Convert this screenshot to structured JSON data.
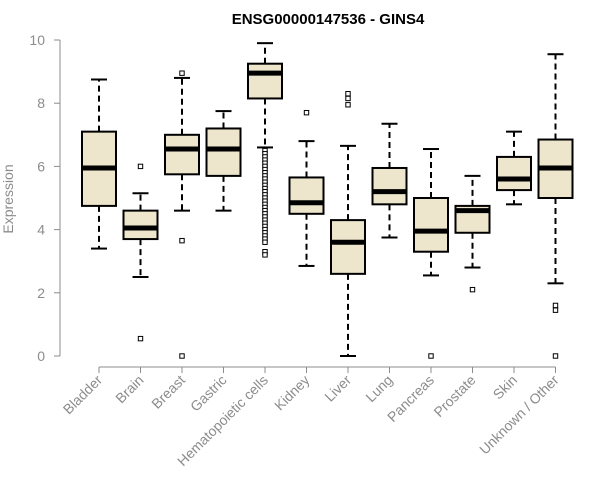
{
  "chart_data": {
    "type": "box",
    "title": "ENSG00000147536 - GINS4",
    "ylabel": "Expression",
    "xlabel": "",
    "ylim": [
      0,
      10
    ],
    "yticks": [
      0,
      2,
      4,
      6,
      8,
      10
    ],
    "colors": {
      "box_fill": "#ede6cc",
      "stroke": "#000000",
      "axis": "#8c8c8c"
    },
    "categories": [
      "Bladder",
      "Brain",
      "Breast",
      "Gastric",
      "Hematopoietic cells",
      "Kidney",
      "Liver",
      "Lung",
      "Pancreas",
      "Prostate",
      "Skin",
      "Unknown / Other"
    ],
    "boxes": [
      {
        "category": "Bladder",
        "whisker_low": 3.4,
        "q1": 4.75,
        "median": 5.95,
        "q3": 7.1,
        "whisker_high": 8.75,
        "outliers": []
      },
      {
        "category": "Brain",
        "whisker_low": 2.5,
        "q1": 3.7,
        "median": 4.05,
        "q3": 4.6,
        "whisker_high": 5.15,
        "outliers": [
          6.0,
          0.55
        ]
      },
      {
        "category": "Breast",
        "whisker_low": 4.6,
        "q1": 5.75,
        "median": 6.55,
        "q3": 7.0,
        "whisker_high": 8.8,
        "outliers": [
          8.95,
          3.65,
          0.0
        ]
      },
      {
        "category": "Gastric",
        "whisker_low": 4.6,
        "q1": 5.7,
        "median": 6.55,
        "q3": 7.2,
        "whisker_high": 7.75,
        "outliers": []
      },
      {
        "category": "Hematopoietic cells",
        "whisker_low": 6.6,
        "q1": 8.15,
        "median": 8.95,
        "q3": 9.25,
        "whisker_high": 9.9,
        "outliers": [
          6.5,
          6.4,
          6.3,
          6.2,
          6.1,
          6.0,
          5.9,
          5.8,
          5.7,
          5.6,
          5.5,
          5.4,
          5.3,
          5.2,
          5.1,
          5.0,
          4.9,
          4.8,
          4.7,
          4.6,
          4.5,
          4.4,
          4.3,
          4.2,
          4.1,
          4.0,
          3.9,
          3.8,
          3.7,
          3.6,
          3.3,
          3.2
        ]
      },
      {
        "category": "Kidney",
        "whisker_low": 2.85,
        "q1": 4.5,
        "median": 4.85,
        "q3": 5.65,
        "whisker_high": 6.8,
        "outliers": [
          7.7
        ]
      },
      {
        "category": "Liver",
        "whisker_low": 0.0,
        "q1": 2.6,
        "median": 3.6,
        "q3": 4.3,
        "whisker_high": 6.65,
        "outliers": [
          8.3,
          8.15,
          7.95
        ]
      },
      {
        "category": "Lung",
        "whisker_low": 3.75,
        "q1": 4.8,
        "median": 5.2,
        "q3": 5.95,
        "whisker_high": 7.35,
        "outliers": []
      },
      {
        "category": "Pancreas",
        "whisker_low": 2.55,
        "q1": 3.3,
        "median": 3.95,
        "q3": 5.0,
        "whisker_high": 6.55,
        "outliers": [
          0.0
        ]
      },
      {
        "category": "Prostate",
        "whisker_low": 2.8,
        "q1": 3.9,
        "median": 4.6,
        "q3": 4.75,
        "whisker_high": 5.7,
        "outliers": [
          2.1
        ]
      },
      {
        "category": "Skin",
        "whisker_low": 4.8,
        "q1": 5.25,
        "median": 5.6,
        "q3": 6.3,
        "whisker_high": 7.1,
        "outliers": []
      },
      {
        "category": "Unknown / Other",
        "whisker_low": 2.3,
        "q1": 5.0,
        "median": 5.95,
        "q3": 6.85,
        "whisker_high": 9.55,
        "outliers": [
          1.6,
          1.45,
          0.0
        ]
      }
    ]
  }
}
